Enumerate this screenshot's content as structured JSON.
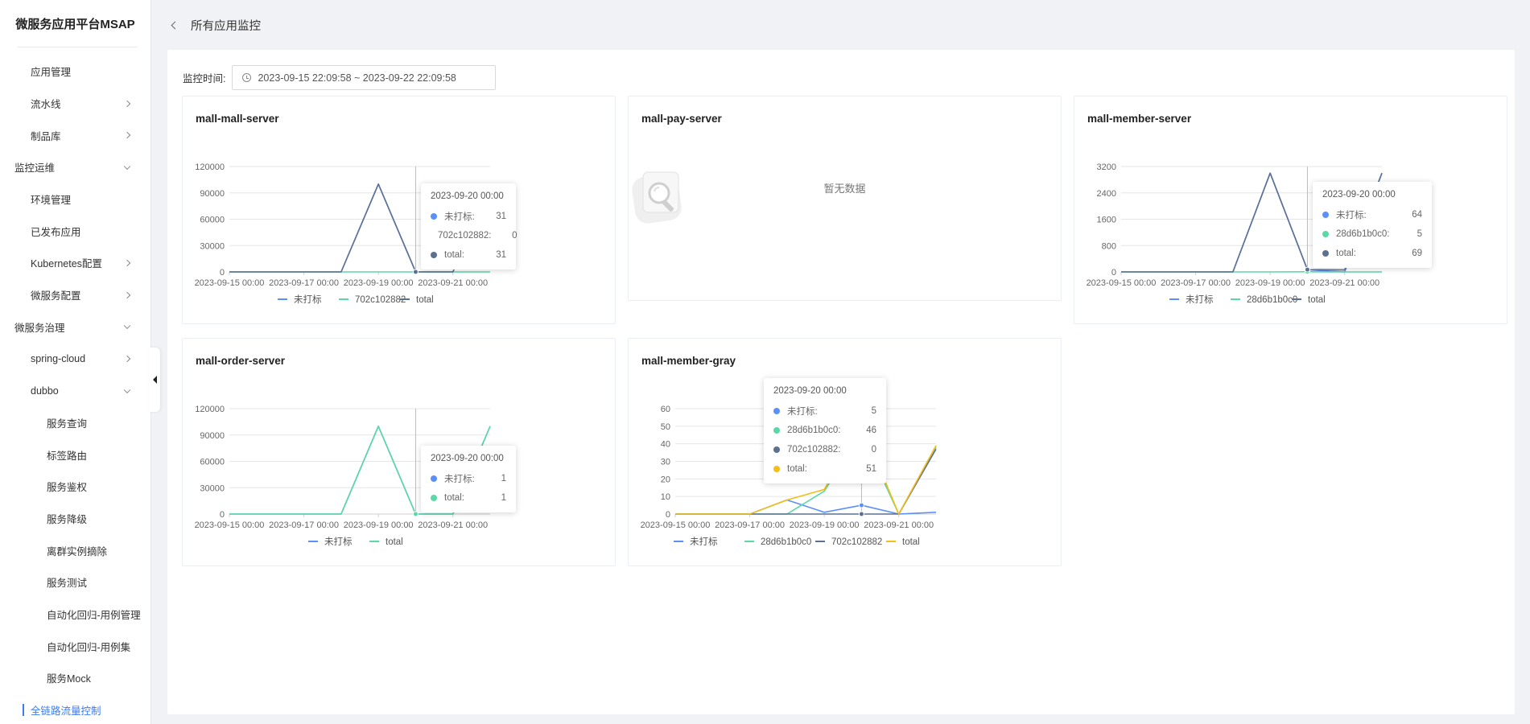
{
  "sidebar": {
    "brand": "微服务应用平台MSAP",
    "items": [
      {
        "label": "应用管理",
        "level": 1,
        "chevron": "none"
      },
      {
        "label": "流水线",
        "level": 1,
        "chevron": "right"
      },
      {
        "label": "制品库",
        "level": 1,
        "chevron": "right"
      },
      {
        "label": "监控运维",
        "level": 0,
        "chevron": "down"
      },
      {
        "label": "环境管理",
        "level": 1,
        "chevron": "none"
      },
      {
        "label": "已发布应用",
        "level": 1,
        "chevron": "none"
      },
      {
        "label": "Kubernetes配置",
        "level": 1,
        "chevron": "right"
      },
      {
        "label": "微服务配置",
        "level": 1,
        "chevron": "right"
      },
      {
        "label": "微服务治理",
        "level": 0,
        "chevron": "down"
      },
      {
        "label": "spring-cloud",
        "level": 1,
        "chevron": "right"
      },
      {
        "label": "dubbo",
        "level": 1,
        "chevron": "down"
      },
      {
        "label": "服务查询",
        "level": 2,
        "chevron": "none"
      },
      {
        "label": "标签路由",
        "level": 2,
        "chevron": "none"
      },
      {
        "label": "服务鉴权",
        "level": 2,
        "chevron": "none"
      },
      {
        "label": "服务降级",
        "level": 2,
        "chevron": "none"
      },
      {
        "label": "离群实例摘除",
        "level": 2,
        "chevron": "none"
      },
      {
        "label": "服务测试",
        "level": 2,
        "chevron": "none"
      },
      {
        "label": "自动化回归-用例管理",
        "level": 2,
        "chevron": "none"
      },
      {
        "label": "自动化回归-用例集",
        "level": 2,
        "chevron": "none"
      },
      {
        "label": "服务Mock",
        "level": 2,
        "chevron": "none"
      },
      {
        "label": "全链路流量控制",
        "level": 1,
        "chevron": "none",
        "active": true
      }
    ]
  },
  "header": {
    "title": "所有应用监控"
  },
  "filter": {
    "label": "监控时间:",
    "range": "2023-09-15 22:09:58 ~ 2023-09-22 22:09:58"
  },
  "colors": {
    "blue": "#5b8ff9",
    "green": "#5ad8a6",
    "navy": "#5d7092",
    "yellow": "#f6bd16",
    "active": "#3b7cf0"
  },
  "empty_state": {
    "text": "暂无数据",
    "icon": "magnifier-empty-icon"
  },
  "chart_data": [
    {
      "id": "mall-mall-server",
      "title": "mall-mall-server",
      "type": "line",
      "x": [
        "2023-09-15 00:00",
        "2023-09-16 00:00",
        "2023-09-17 00:00",
        "2023-09-18 00:00",
        "2023-09-19 00:00",
        "2023-09-20 00:00",
        "2023-09-21 00:00",
        "2023-09-22 00:00"
      ],
      "x_tick_labels": [
        "2023-09-15 00:00",
        "2023-09-17 00:00",
        "2023-09-19 00:00",
        "2023-09-21 00:00"
      ],
      "ylim": [
        0,
        120000
      ],
      "y_ticks": [
        "0",
        "30000",
        "60000",
        "90000",
        "120000"
      ],
      "series": [
        {
          "name": "未打标",
          "color": "#5b8ff9",
          "values": [
            0,
            0,
            0,
            0,
            100000,
            31,
            0,
            100000
          ]
        },
        {
          "name": "702c102882",
          "color": "#5ad8a6",
          "values": [
            0,
            0,
            0,
            0,
            0,
            0,
            0,
            0
          ]
        },
        {
          "name": "total",
          "color": "#5d7092",
          "values": [
            0,
            0,
            0,
            0,
            100000,
            31,
            0,
            100000
          ]
        }
      ],
      "tooltip": {
        "title": "2023-09-20 00:00",
        "rows": [
          {
            "name": "未打标:",
            "value": "31"
          },
          {
            "name": "702c102882:",
            "value": "0"
          },
          {
            "name": "total:",
            "value": "31"
          }
        ]
      }
    },
    {
      "id": "mall-member-server",
      "title": "mall-member-server",
      "type": "line",
      "x": [
        "2023-09-15 00:00",
        "2023-09-16 00:00",
        "2023-09-17 00:00",
        "2023-09-18 00:00",
        "2023-09-19 00:00",
        "2023-09-20 00:00",
        "2023-09-21 00:00",
        "2023-09-22 00:00"
      ],
      "x_tick_labels": [
        "2023-09-15 00:00",
        "2023-09-17 00:00",
        "2023-09-19 00:00",
        "2023-09-21 00:00"
      ],
      "ylim": [
        0,
        3200
      ],
      "y_ticks": [
        "0",
        "800",
        "1600",
        "2400",
        "3200"
      ],
      "series": [
        {
          "name": "未打标",
          "color": "#5b8ff9",
          "values": [
            0,
            0,
            0,
            0,
            3000,
            64,
            0,
            3000
          ]
        },
        {
          "name": "28d6b1b0c0",
          "color": "#5ad8a6",
          "values": [
            0,
            0,
            0,
            0,
            0,
            5,
            0,
            0
          ]
        },
        {
          "name": "total",
          "color": "#5d7092",
          "values": [
            0,
            0,
            0,
            0,
            3000,
            69,
            60,
            3000
          ]
        }
      ],
      "tooltip": {
        "title": "2023-09-20 00:00",
        "rows": [
          {
            "name": "未打标:",
            "value": "64"
          },
          {
            "name": "28d6b1b0c0:",
            "value": "5"
          },
          {
            "name": "total:",
            "value": "69"
          }
        ]
      }
    },
    {
      "id": "mall-order-server",
      "title": "mall-order-server",
      "type": "line",
      "x": [
        "2023-09-15 00:00",
        "2023-09-16 00:00",
        "2023-09-17 00:00",
        "2023-09-18 00:00",
        "2023-09-19 00:00",
        "2023-09-20 00:00",
        "2023-09-21 00:00",
        "2023-09-22 00:00"
      ],
      "x_tick_labels": [
        "2023-09-15 00:00",
        "2023-09-17 00:00",
        "2023-09-19 00:00",
        "2023-09-21 00:00"
      ],
      "ylim": [
        0,
        120000
      ],
      "y_ticks": [
        "0",
        "30000",
        "60000",
        "90000",
        "120000"
      ],
      "series": [
        {
          "name": "未打标",
          "color": "#5b8ff9",
          "values": [
            0,
            0,
            0,
            0,
            100000,
            1,
            0,
            100000
          ]
        },
        {
          "name": "total",
          "color": "#5ad8a6",
          "values": [
            0,
            0,
            0,
            0,
            100000,
            1,
            0,
            100000
          ]
        }
      ],
      "tooltip": {
        "title": "2023-09-20 00:00",
        "rows": [
          {
            "name": "未打标:",
            "value": "1"
          },
          {
            "name": "total:",
            "value": "1"
          }
        ]
      }
    },
    {
      "id": "mall-member-gray",
      "title": "mall-member-gray",
      "type": "line",
      "x": [
        "2023-09-15 00:00",
        "2023-09-16 00:00",
        "2023-09-17 00:00",
        "2023-09-18 00:00",
        "2023-09-19 00:00",
        "2023-09-20 00:00",
        "2023-09-21 00:00",
        "2023-09-22 00:00"
      ],
      "x_tick_labels": [
        "2023-09-15 00:00",
        "2023-09-17 00:00",
        "2023-09-19 00:00",
        "2023-09-21 00:00"
      ],
      "ylim": [
        0,
        60
      ],
      "y_ticks": [
        "0",
        "10",
        "20",
        "30",
        "40",
        "50",
        "60"
      ],
      "series": [
        {
          "name": "未打标",
          "color": "#5b8ff9",
          "values": [
            0,
            0,
            0,
            8,
            1,
            5,
            0,
            1
          ]
        },
        {
          "name": "28d6b1b0c0",
          "color": "#5ad8a6",
          "values": [
            0,
            0,
            0,
            0,
            13,
            46,
            0,
            38
          ]
        },
        {
          "name": "702c102882",
          "color": "#5d7092",
          "values": [
            0,
            0,
            0,
            0,
            0,
            0,
            0,
            37
          ]
        },
        {
          "name": "total",
          "color": "#f6bd16",
          "values": [
            0,
            0,
            0,
            8,
            14,
            51,
            0,
            39
          ]
        }
      ],
      "tooltip": {
        "title": "2023-09-20 00:00",
        "rows": [
          {
            "name": "未打标:",
            "value": "5"
          },
          {
            "name": "28d6b1b0c0:",
            "value": "46"
          },
          {
            "name": "702c102882:",
            "value": "0"
          },
          {
            "name": "total:",
            "value": "51"
          }
        ]
      }
    }
  ],
  "empty_cards": [
    {
      "id": "mall-pay-server",
      "title": "mall-pay-server"
    }
  ]
}
